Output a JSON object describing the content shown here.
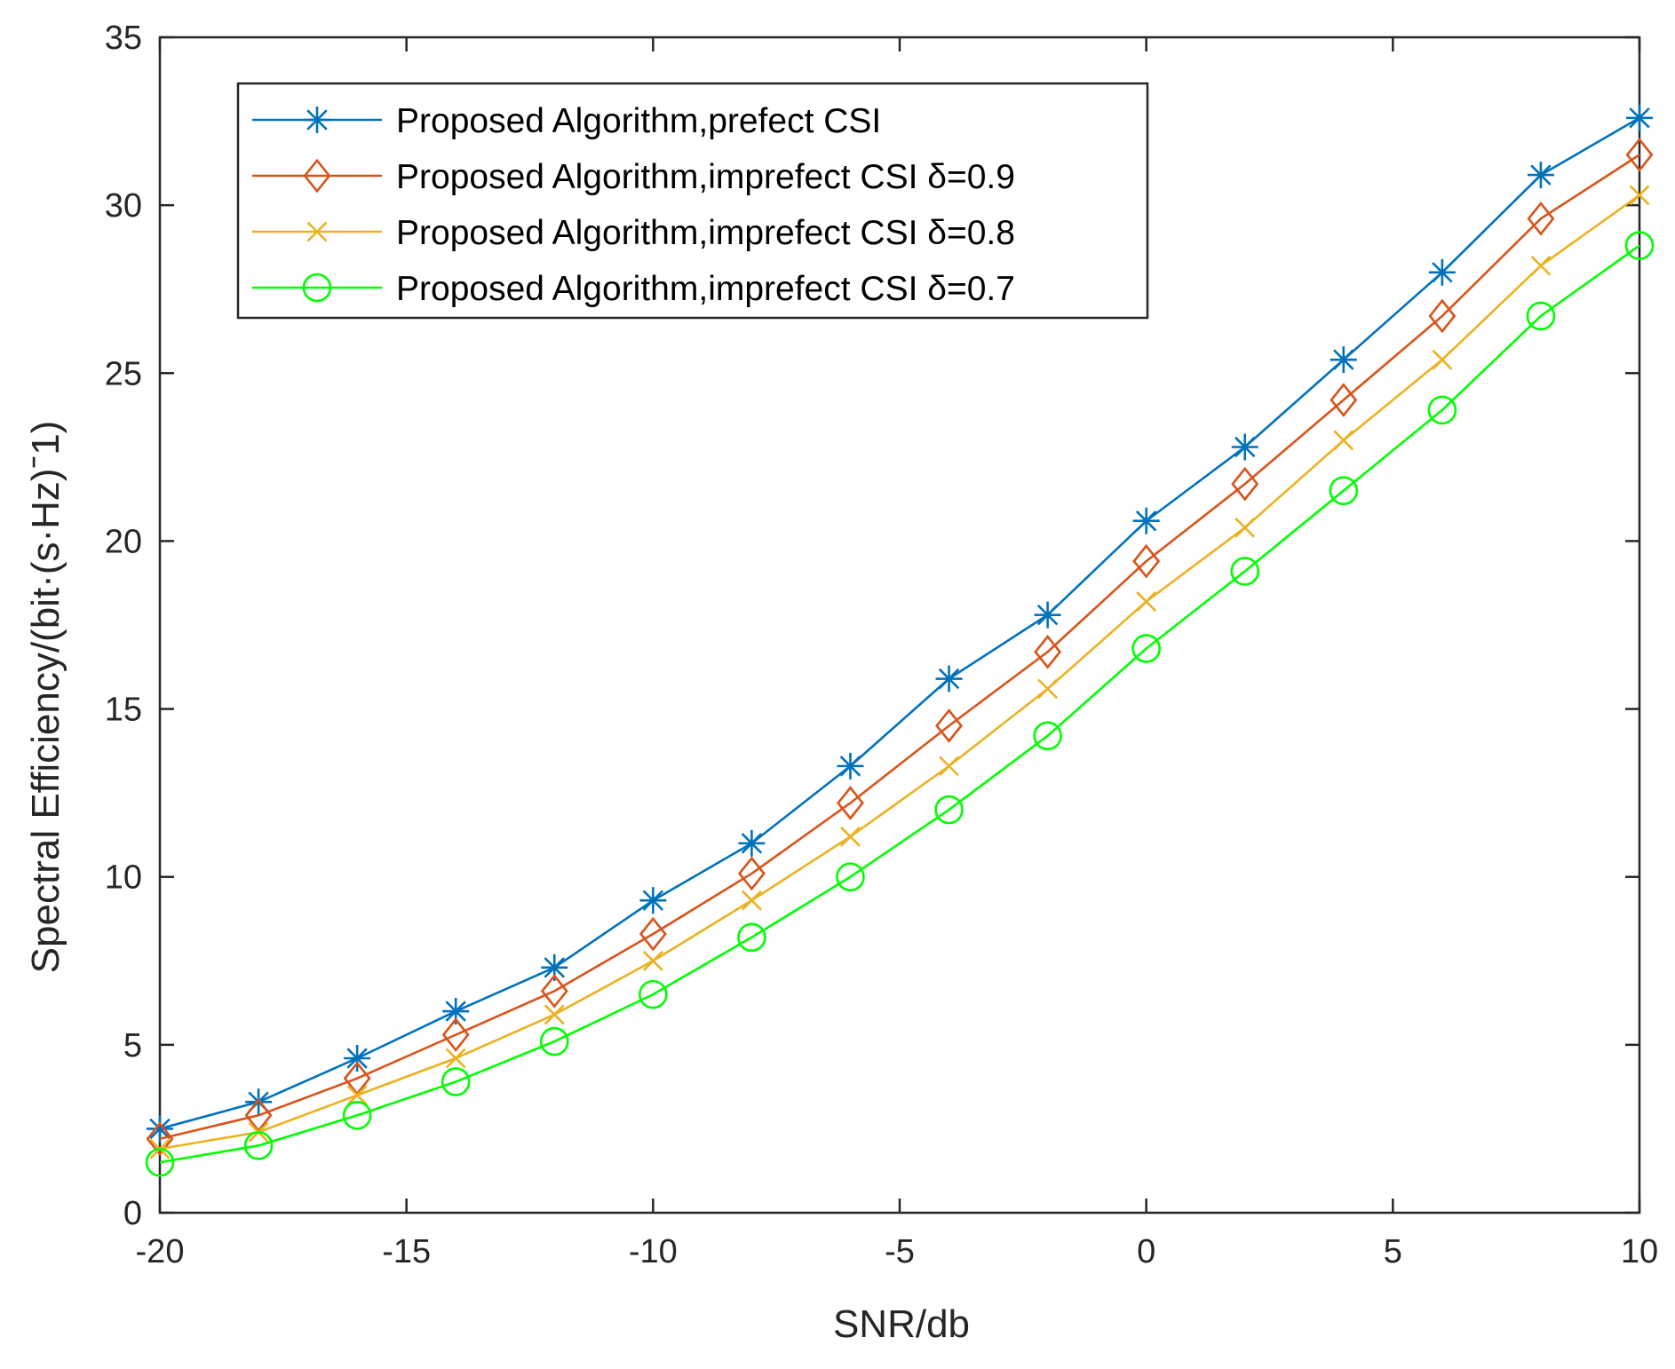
{
  "chart_data": {
    "type": "line",
    "title": "",
    "xlabel": "SNR/db",
    "ylabel": "Spectral Efficiency/(bit·(s·Hz)ˉ1)",
    "xlim": [
      -20,
      10
    ],
    "ylim": [
      0,
      35
    ],
    "xticks": [
      -20,
      -15,
      -10,
      -5,
      0,
      5,
      10
    ],
    "yticks": [
      0,
      5,
      10,
      15,
      20,
      25,
      30,
      35
    ],
    "xtick_labels": [
      "-20",
      "-15",
      "-10",
      "-5",
      "0",
      "5",
      "10"
    ],
    "ytick_labels": [
      "0",
      "5",
      "10",
      "15",
      "20",
      "25",
      "30",
      "35"
    ],
    "grid": false,
    "legend_position": "top-left",
    "x": [
      -20,
      -18,
      -16,
      -14,
      -12,
      -10,
      -8,
      -6,
      -4,
      -2,
      0,
      2,
      4,
      6,
      8,
      10
    ],
    "series": [
      {
        "name": "Proposed Algorithm,prefect CSI",
        "color": "#0072BD",
        "marker": "asterisk",
        "values": [
          2.5,
          3.3,
          4.6,
          6.0,
          7.3,
          9.3,
          11.0,
          13.3,
          15.9,
          17.8,
          20.6,
          22.8,
          25.4,
          28.0,
          30.9,
          32.6
        ]
      },
      {
        "name": "Proposed Algorithm,imprefect CSI δ=0.9",
        "color": "#D95319",
        "marker": "diamond",
        "values": [
          2.2,
          2.9,
          4.0,
          5.3,
          6.6,
          8.3,
          10.1,
          12.2,
          14.5,
          16.7,
          19.4,
          21.7,
          24.2,
          26.7,
          29.6,
          31.5
        ]
      },
      {
        "name": "Proposed Algorithm,imprefect CSI δ=0.8",
        "color": "#EDB120",
        "marker": "x",
        "values": [
          1.9,
          2.4,
          3.5,
          4.6,
          5.9,
          7.5,
          9.3,
          11.2,
          13.3,
          15.6,
          18.2,
          20.4,
          23.0,
          25.4,
          28.2,
          30.3
        ]
      },
      {
        "name": "Proposed Algorithm,imprefect CSI δ=0.7",
        "color": "#00FF00",
        "marker": "circle",
        "values": [
          1.5,
          2.0,
          2.9,
          3.9,
          5.1,
          6.5,
          8.2,
          10.0,
          12.0,
          14.2,
          16.8,
          19.1,
          21.5,
          23.9,
          26.7,
          28.8
        ]
      }
    ]
  }
}
